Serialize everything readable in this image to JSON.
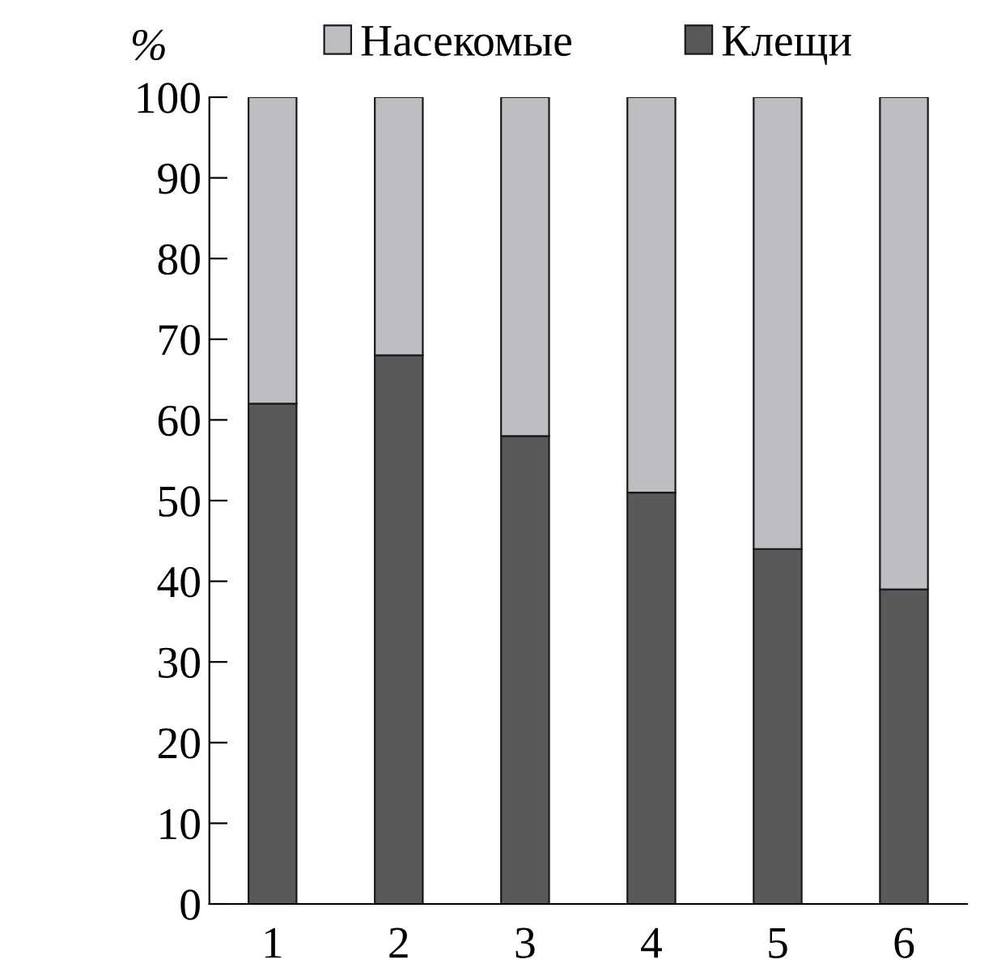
{
  "chart_data": {
    "type": "bar",
    "stacked": true,
    "ylabel": "%",
    "categories": [
      "1",
      "2",
      "3",
      "4",
      "5",
      "6"
    ],
    "series": [
      {
        "name": "Клещи",
        "color": "#58595b",
        "values": [
          62,
          68,
          58,
          51,
          44,
          39
        ]
      },
      {
        "name": "Насекомые",
        "color": "#bdbec2",
        "values": [
          38,
          32,
          42,
          49,
          56,
          61
        ]
      }
    ],
    "ylim": [
      0,
      100
    ],
    "yticks": [
      0,
      10,
      20,
      30,
      40,
      50,
      60,
      70,
      80,
      90,
      100
    ],
    "grid": false,
    "legend": "top"
  }
}
